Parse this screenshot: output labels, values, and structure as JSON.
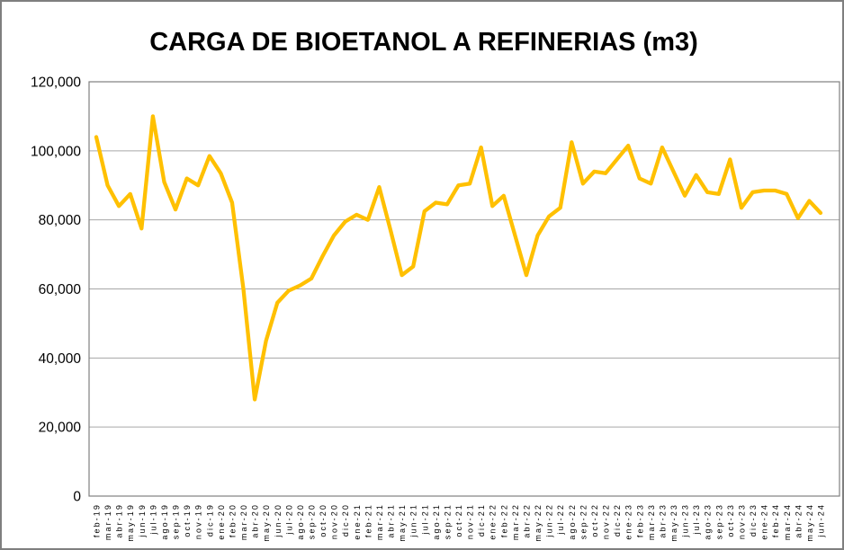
{
  "window": {
    "background": "#FFFFFF",
    "border_color": "#7F7F7F"
  },
  "chart_data": {
    "type": "line",
    "title": "CARGA DE BIOETANOL A REFINERIAS (m3)",
    "xlabel": "",
    "ylabel": "",
    "ylim": [
      0,
      120000
    ],
    "ytick_interval": 20000,
    "ytick_labels": [
      "0",
      "20,000",
      "40,000",
      "60,000",
      "80,000",
      "100,000",
      "120,000"
    ],
    "grid": true,
    "legend_position": "none",
    "line_color": "#FFC000",
    "gridline_color": "#A6A6A6",
    "axis_color": "#808080",
    "text_color": "#000000",
    "categories": [
      "feb-19",
      "mar-19",
      "abr-19",
      "may-19",
      "jun-19",
      "jul-19",
      "ago-19",
      "sep-19",
      "oct-19",
      "nov-19",
      "dic-19",
      "ene-20",
      "feb-20",
      "mar-20",
      "abr-20",
      "may-20",
      "jun-20",
      "jul-20",
      "ago-20",
      "sep-20",
      "oct-20",
      "nov-20",
      "dic-20",
      "ene-21",
      "feb-21",
      "mar-21",
      "abr-21",
      "may-21",
      "jun-21",
      "jul-21",
      "ago-21",
      "sep-21",
      "oct-21",
      "nov-21",
      "dic-21",
      "ene-22",
      "feb-22",
      "mar-22",
      "abr-22",
      "may-22",
      "jun-22",
      "jul-22",
      "ago-22",
      "sep-22",
      "oct-22",
      "nov-22",
      "dic-22",
      "ene-23",
      "feb-23",
      "mar-23",
      "abr-23",
      "may-23",
      "jun-23",
      "jul-23",
      "ago-23",
      "sep-23",
      "oct-23",
      "nov-23",
      "dic-23",
      "ene-24",
      "feb-24",
      "mar-24",
      "abr-24",
      "may-24",
      "jun-24"
    ],
    "values": [
      104000,
      90000,
      84000,
      87500,
      77500,
      110000,
      91000,
      83000,
      92000,
      90000,
      98500,
      93500,
      85000,
      60000,
      28000,
      45000,
      56000,
      59500,
      61000,
      63000,
      69500,
      75500,
      79500,
      81500,
      80000,
      89500,
      77000,
      64000,
      66500,
      82500,
      85000,
      84500,
      90000,
      90500,
      101000,
      84000,
      87000,
      75500,
      64000,
      75500,
      81000,
      83500,
      102500,
      90500,
      94000,
      93500,
      97500,
      101500,
      92000,
      90500,
      101000,
      94000,
      87000,
      93000,
      88000,
      87500,
      97500,
      83500,
      88000,
      88500,
      88500,
      87500,
      80500,
      85500,
      82000
    ]
  }
}
